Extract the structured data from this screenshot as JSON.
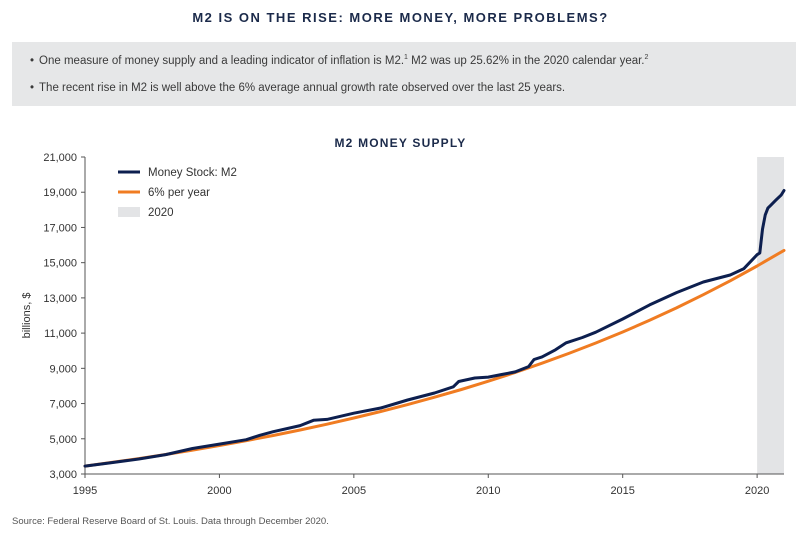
{
  "header": {
    "title": "M2 IS ON THE RISE: MORE MONEY, MORE PROBLEMS?"
  },
  "bullets": [
    {
      "text": "One measure of money supply and a leading indicator of inflation is M2.",
      "sup1": "1",
      "text2": " M2 was up 25.62% in the 2020 calendar year.",
      "sup2": "2"
    },
    {
      "text": "The recent rise in M2 is well above the 6% average annual growth rate observed over the last 25 years."
    }
  ],
  "footer": {
    "source": "Source: Federal Reserve Board of St. Louis. Data through December 2020."
  },
  "chart_data": {
    "type": "line",
    "title": "M2 MONEY SUPPLY",
    "ylabel": "billions, $",
    "xlabel": "",
    "xlim": [
      1995,
      2021
    ],
    "ylim": [
      3000,
      21000
    ],
    "x_ticks": [
      "1995",
      "2000",
      "2005",
      "2010",
      "2015",
      "2020"
    ],
    "y_ticks": [
      "3,000",
      "5,000",
      "7,000",
      "9,000",
      "11,000",
      "13,000",
      "15,000",
      "17,000",
      "19,000",
      "21,000"
    ],
    "legend": {
      "placement": "top-left",
      "entries": [
        "Money Stock: M2",
        "6% per year",
        "2020"
      ]
    },
    "shaded_region": {
      "name": "2020",
      "x": [
        2020,
        2021
      ],
      "color": "#e3e4e6"
    },
    "series": [
      {
        "name": "Money Stock: M2",
        "color": "#0d1f4f",
        "x": [
          1995,
          1996,
          1997,
          1998,
          1999,
          2000,
          2001,
          2001.5,
          2002,
          2003,
          2003.5,
          2004,
          2005,
          2006,
          2007,
          2008,
          2008.7,
          2008.9,
          2009.5,
          2010,
          2010.5,
          2011,
          2011.5,
          2011.7,
          2012,
          2012.5,
          2012.9,
          2013,
          2013.5,
          2014,
          2015,
          2016,
          2017,
          2018,
          2019,
          2019.5,
          2020,
          2020.1,
          2020.2,
          2020.3,
          2020.4,
          2020.5,
          2020.7,
          2020.9,
          2021
        ],
        "values": [
          3450,
          3650,
          3850,
          4100,
          4450,
          4700,
          4950,
          5200,
          5400,
          5750,
          6050,
          6100,
          6450,
          6750,
          7200,
          7600,
          7950,
          8250,
          8450,
          8500,
          8650,
          8800,
          9100,
          9500,
          9650,
          10050,
          10450,
          10500,
          10750,
          11050,
          11800,
          12600,
          13300,
          13900,
          14300,
          14650,
          15450,
          15550,
          16900,
          17700,
          18100,
          18250,
          18550,
          18850,
          19100
        ]
      },
      {
        "name": "6% per year",
        "color": "#f07c22",
        "x": [
          1995,
          1996,
          1997,
          1998,
          1999,
          2000,
          2001,
          2002,
          2003,
          2004,
          2005,
          2006,
          2007,
          2008,
          2009,
          2010,
          2011,
          2012,
          2013,
          2014,
          2015,
          2016,
          2017,
          2018,
          2019,
          2020,
          2021
        ],
        "values": [
          3450,
          3657,
          3876,
          4109,
          4356,
          4617,
          4894,
          5188,
          5499,
          5829,
          6179,
          6549,
          6942,
          7359,
          7800,
          8268,
          8765,
          9291,
          9848,
          10439,
          11065,
          11729,
          12433,
          13179,
          13970,
          14808,
          15697
        ]
      }
    ]
  }
}
